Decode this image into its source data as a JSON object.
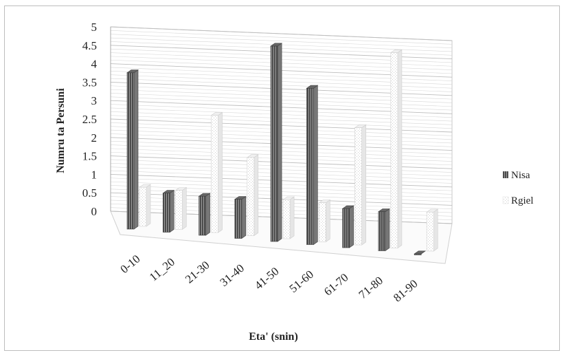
{
  "chart_data": {
    "type": "bar",
    "title": "",
    "xlabel": "Eta' (snin)",
    "ylabel": "Numru ta Persuni",
    "ylim": [
      0,
      5
    ],
    "yticks": [
      "0",
      "0.5",
      "1",
      "1.5",
      "2",
      "2.5",
      "3",
      "3.5",
      "4",
      "4.5",
      "5"
    ],
    "categories": [
      "0-10",
      "11_20",
      "21-30",
      "31-40",
      "41-50",
      "51-60",
      "61-70",
      "71-80",
      "81-90"
    ],
    "series": [
      {
        "name": "Nisa",
        "values": [
          4,
          1,
          1,
          1,
          5,
          4,
          1,
          1,
          0
        ]
      },
      {
        "name": "Rgiel",
        "values": [
          1,
          1,
          3,
          2,
          1,
          1,
          3,
          5,
          1
        ]
      }
    ],
    "grid": true,
    "legend_position": "right",
    "colors": {
      "Nisa": "#555555",
      "Rgiel": "#f2f2f2"
    }
  }
}
